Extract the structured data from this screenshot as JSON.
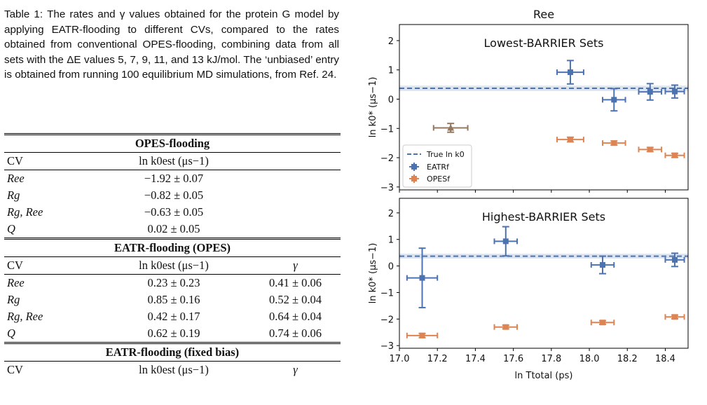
{
  "caption": {
    "label": "Table 1:",
    "text": "The rates and γ values obtained for the protein G model by applying EATR-flooding to different CVs, compared to the rates obtained from conventional OPES-flooding, combining data from all sets with the ΔE values 5, 7, 9, 11, and 13 kJ/mol. The ‘unbiased’ entry is obtained from running 100 equilibrium MD simulations, from Ref. 24."
  },
  "table": {
    "opes_title": "OPES-flooding",
    "col_cv": "CV",
    "col_rate": "ln k0est (μs−1)",
    "col_gamma": "γ",
    "opes_rows": [
      {
        "cv": "Ree",
        "rate": "−1.92 ± 0.07"
      },
      {
        "cv": "Rg",
        "rate": "−0.82 ± 0.05"
      },
      {
        "cv": "Rg, Ree",
        "rate": "−0.63 ± 0.05"
      },
      {
        "cv": "Q",
        "rate": "0.02 ± 0.05"
      }
    ],
    "eatr_opes_title": "EATR-flooding (OPES)",
    "eatr_opes_rows": [
      {
        "cv": "Ree",
        "rate": "0.23 ± 0.23",
        "gamma": "0.41 ± 0.06"
      },
      {
        "cv": "Rg",
        "rate": "0.85 ± 0.16",
        "gamma": "0.52 ± 0.04"
      },
      {
        "cv": "Rg, Ree",
        "rate": "0.42 ± 0.17",
        "gamma": "0.64 ± 0.04"
      },
      {
        "cv": "Q",
        "rate": "0.62 ± 0.19",
        "gamma": "0.74 ± 0.06"
      }
    ],
    "eatr_fixed_title": "EATR-flooding (fixed bias)"
  },
  "chart_data": [
    {
      "type": "scatter",
      "title": "Ree",
      "annotation": "Lowest-BARRIER Sets",
      "xlabel": "ln Ttotal (ps)",
      "ylabel": "ln k0* (μs−1)",
      "xlim": [
        17.0,
        18.52
      ],
      "ylim": [
        -3.1,
        2.55
      ],
      "xticks": [
        "17.0",
        "17.2",
        "17.4",
        "17.6",
        "17.8",
        "18.0",
        "18.2",
        "18.4"
      ],
      "yticks": [
        "−3",
        "−2",
        "−1",
        "0",
        "1",
        "2"
      ],
      "true_lnk0": 0.37,
      "true_band": [
        0.28,
        0.46
      ],
      "legend": [
        "True ln k0",
        "EATRf",
        "OPESf"
      ],
      "legend_position": "lower-left",
      "series": [
        {
          "name": "EATRf",
          "color": "#4c72b0",
          "points": [
            {
              "x": 17.9,
              "y": 0.92,
              "xerr": 0.07,
              "yerr": 0.4
            },
            {
              "x": 18.13,
              "y": -0.02,
              "xerr": 0.06,
              "yerr": 0.38
            },
            {
              "x": 18.32,
              "y": 0.25,
              "xerr": 0.06,
              "yerr": 0.28
            },
            {
              "x": 18.45,
              "y": 0.26,
              "xerr": 0.05,
              "yerr": 0.22
            }
          ]
        },
        {
          "name": "OPESf",
          "color": "#dd8452",
          "points": [
            {
              "x": 17.9,
              "y": -1.38,
              "xerr": 0.07,
              "yerr": 0.08
            },
            {
              "x": 18.13,
              "y": -1.5,
              "xerr": 0.06,
              "yerr": 0.07
            },
            {
              "x": 18.32,
              "y": -1.72,
              "xerr": 0.06,
              "yerr": 0.07
            },
            {
              "x": 18.45,
              "y": -1.92,
              "xerr": 0.05,
              "yerr": 0.07
            }
          ]
        },
        {
          "color": "#937860",
          "points": [
            {
              "x": 17.27,
              "y": -0.98,
              "xerr": 0.09,
              "yerr": 0.15
            }
          ]
        }
      ]
    },
    {
      "type": "scatter",
      "annotation": "Highest-BARRIER Sets",
      "xlabel": "ln Ttotal (ps)",
      "ylabel": "ln k0* (μs−1)",
      "xlim": [
        17.0,
        18.52
      ],
      "ylim": [
        -3.1,
        2.55
      ],
      "xticks": [
        "17.0",
        "17.2",
        "17.4",
        "17.6",
        "17.8",
        "18.0",
        "18.2",
        "18.4"
      ],
      "yticks": [
        "−3",
        "−2",
        "−1",
        "0",
        "1",
        "2"
      ],
      "true_lnk0": 0.37,
      "true_band": [
        0.28,
        0.46
      ],
      "series": [
        {
          "name": "EATRf",
          "color": "#4c72b0",
          "points": [
            {
              "x": 17.12,
              "y": -0.45,
              "xerr": 0.08,
              "yerr": 1.12
            },
            {
              "x": 17.56,
              "y": 0.93,
              "xerr": 0.06,
              "yerr": 0.55
            },
            {
              "x": 18.07,
              "y": 0.04,
              "xerr": 0.06,
              "yerr": 0.33
            },
            {
              "x": 18.45,
              "y": 0.23,
              "xerr": 0.05,
              "yerr": 0.25
            }
          ]
        },
        {
          "name": "OPESf",
          "color": "#dd8452",
          "points": [
            {
              "x": 17.12,
              "y": -2.62,
              "xerr": 0.08,
              "yerr": 0.08
            },
            {
              "x": 17.56,
              "y": -2.3,
              "xerr": 0.06,
              "yerr": 0.07
            },
            {
              "x": 18.07,
              "y": -2.13,
              "xerr": 0.06,
              "yerr": 0.07
            },
            {
              "x": 18.45,
              "y": -1.92,
              "xerr": 0.05,
              "yerr": 0.07
            }
          ]
        }
      ]
    }
  ]
}
